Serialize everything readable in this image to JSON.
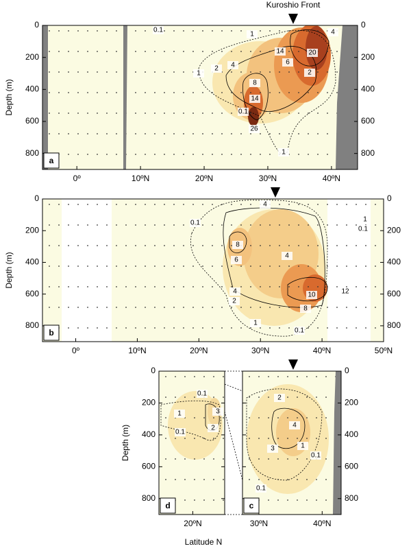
{
  "xlabel": "Latitude N",
  "chart_data": [
    {
      "type": "contour",
      "panel_label": "a",
      "annotation": "Kuroshio Front",
      "ylabel": "Depth (m)",
      "xlim": [
        -5.4,
        44.1
      ],
      "ylim": [
        0,
        900
      ],
      "y_inverted": true,
      "ytick_labels": [
        "left",
        "right"
      ],
      "xticks": [
        {
          "value": 0,
          "label": "0º"
        },
        {
          "value": 10,
          "label": "10ºN"
        },
        {
          "value": 20,
          "label": "20ºN"
        },
        {
          "value": 30,
          "label": "30ºN"
        },
        {
          "value": 40,
          "label": "40ºN"
        }
      ],
      "yticks": [
        0,
        200,
        400,
        600,
        800
      ],
      "contour_labels": [
        0.1,
        1,
        1,
        2,
        4,
        8,
        14,
        26,
        14,
        6,
        20,
        4,
        2,
        0.1,
        1
      ]
    },
    {
      "type": "contour",
      "panel_label": "b",
      "ylabel": "Depth (m)",
      "xlim": [
        -5.4,
        50
      ],
      "ylim": [
        0,
        900
      ],
      "y_inverted": true,
      "ytick_labels": [
        "left",
        "right"
      ],
      "xticks": [
        {
          "value": 0,
          "label": "0º"
        },
        {
          "value": 10,
          "label": "10ºN"
        },
        {
          "value": 20,
          "label": "20ºN"
        },
        {
          "value": 30,
          "label": "30ºN"
        },
        {
          "value": 40,
          "label": "40ºN"
        },
        {
          "value": 50,
          "label": "50ºN"
        }
      ],
      "yticks": [
        0,
        200,
        400,
        600,
        800
      ],
      "contour_labels": [
        4,
        0.1,
        8,
        6,
        4,
        4,
        2,
        10,
        12,
        8,
        1,
        0.1,
        1,
        0.1
      ]
    },
    {
      "type": "contour",
      "panel_label": "d",
      "ylabel": "Depth (m)",
      "xlim": [
        14.8,
        24.9
      ],
      "ylim": [
        0,
        900
      ],
      "y_inverted": true,
      "ytick_labels": [
        "left"
      ],
      "xticks": [
        {
          "value": 20,
          "label": "20ºN"
        }
      ],
      "yticks": [
        0,
        200,
        400,
        600,
        800
      ],
      "contour_labels": [
        0.1,
        1,
        3,
        2,
        0.1
      ]
    },
    {
      "type": "contour",
      "panel_label": "c",
      "xlim": [
        27.4,
        43
      ],
      "ylim": [
        0,
        900
      ],
      "y_inverted": true,
      "ytick_labels": [
        "right"
      ],
      "xticks": [
        {
          "value": 30,
          "label": "30ºN"
        },
        {
          "value": 40,
          "label": "40ºN"
        }
      ],
      "yticks": [
        0,
        200,
        400,
        600,
        800
      ],
      "contour_labels": [
        2,
        4,
        3,
        1,
        0.1,
        0.1
      ]
    }
  ]
}
